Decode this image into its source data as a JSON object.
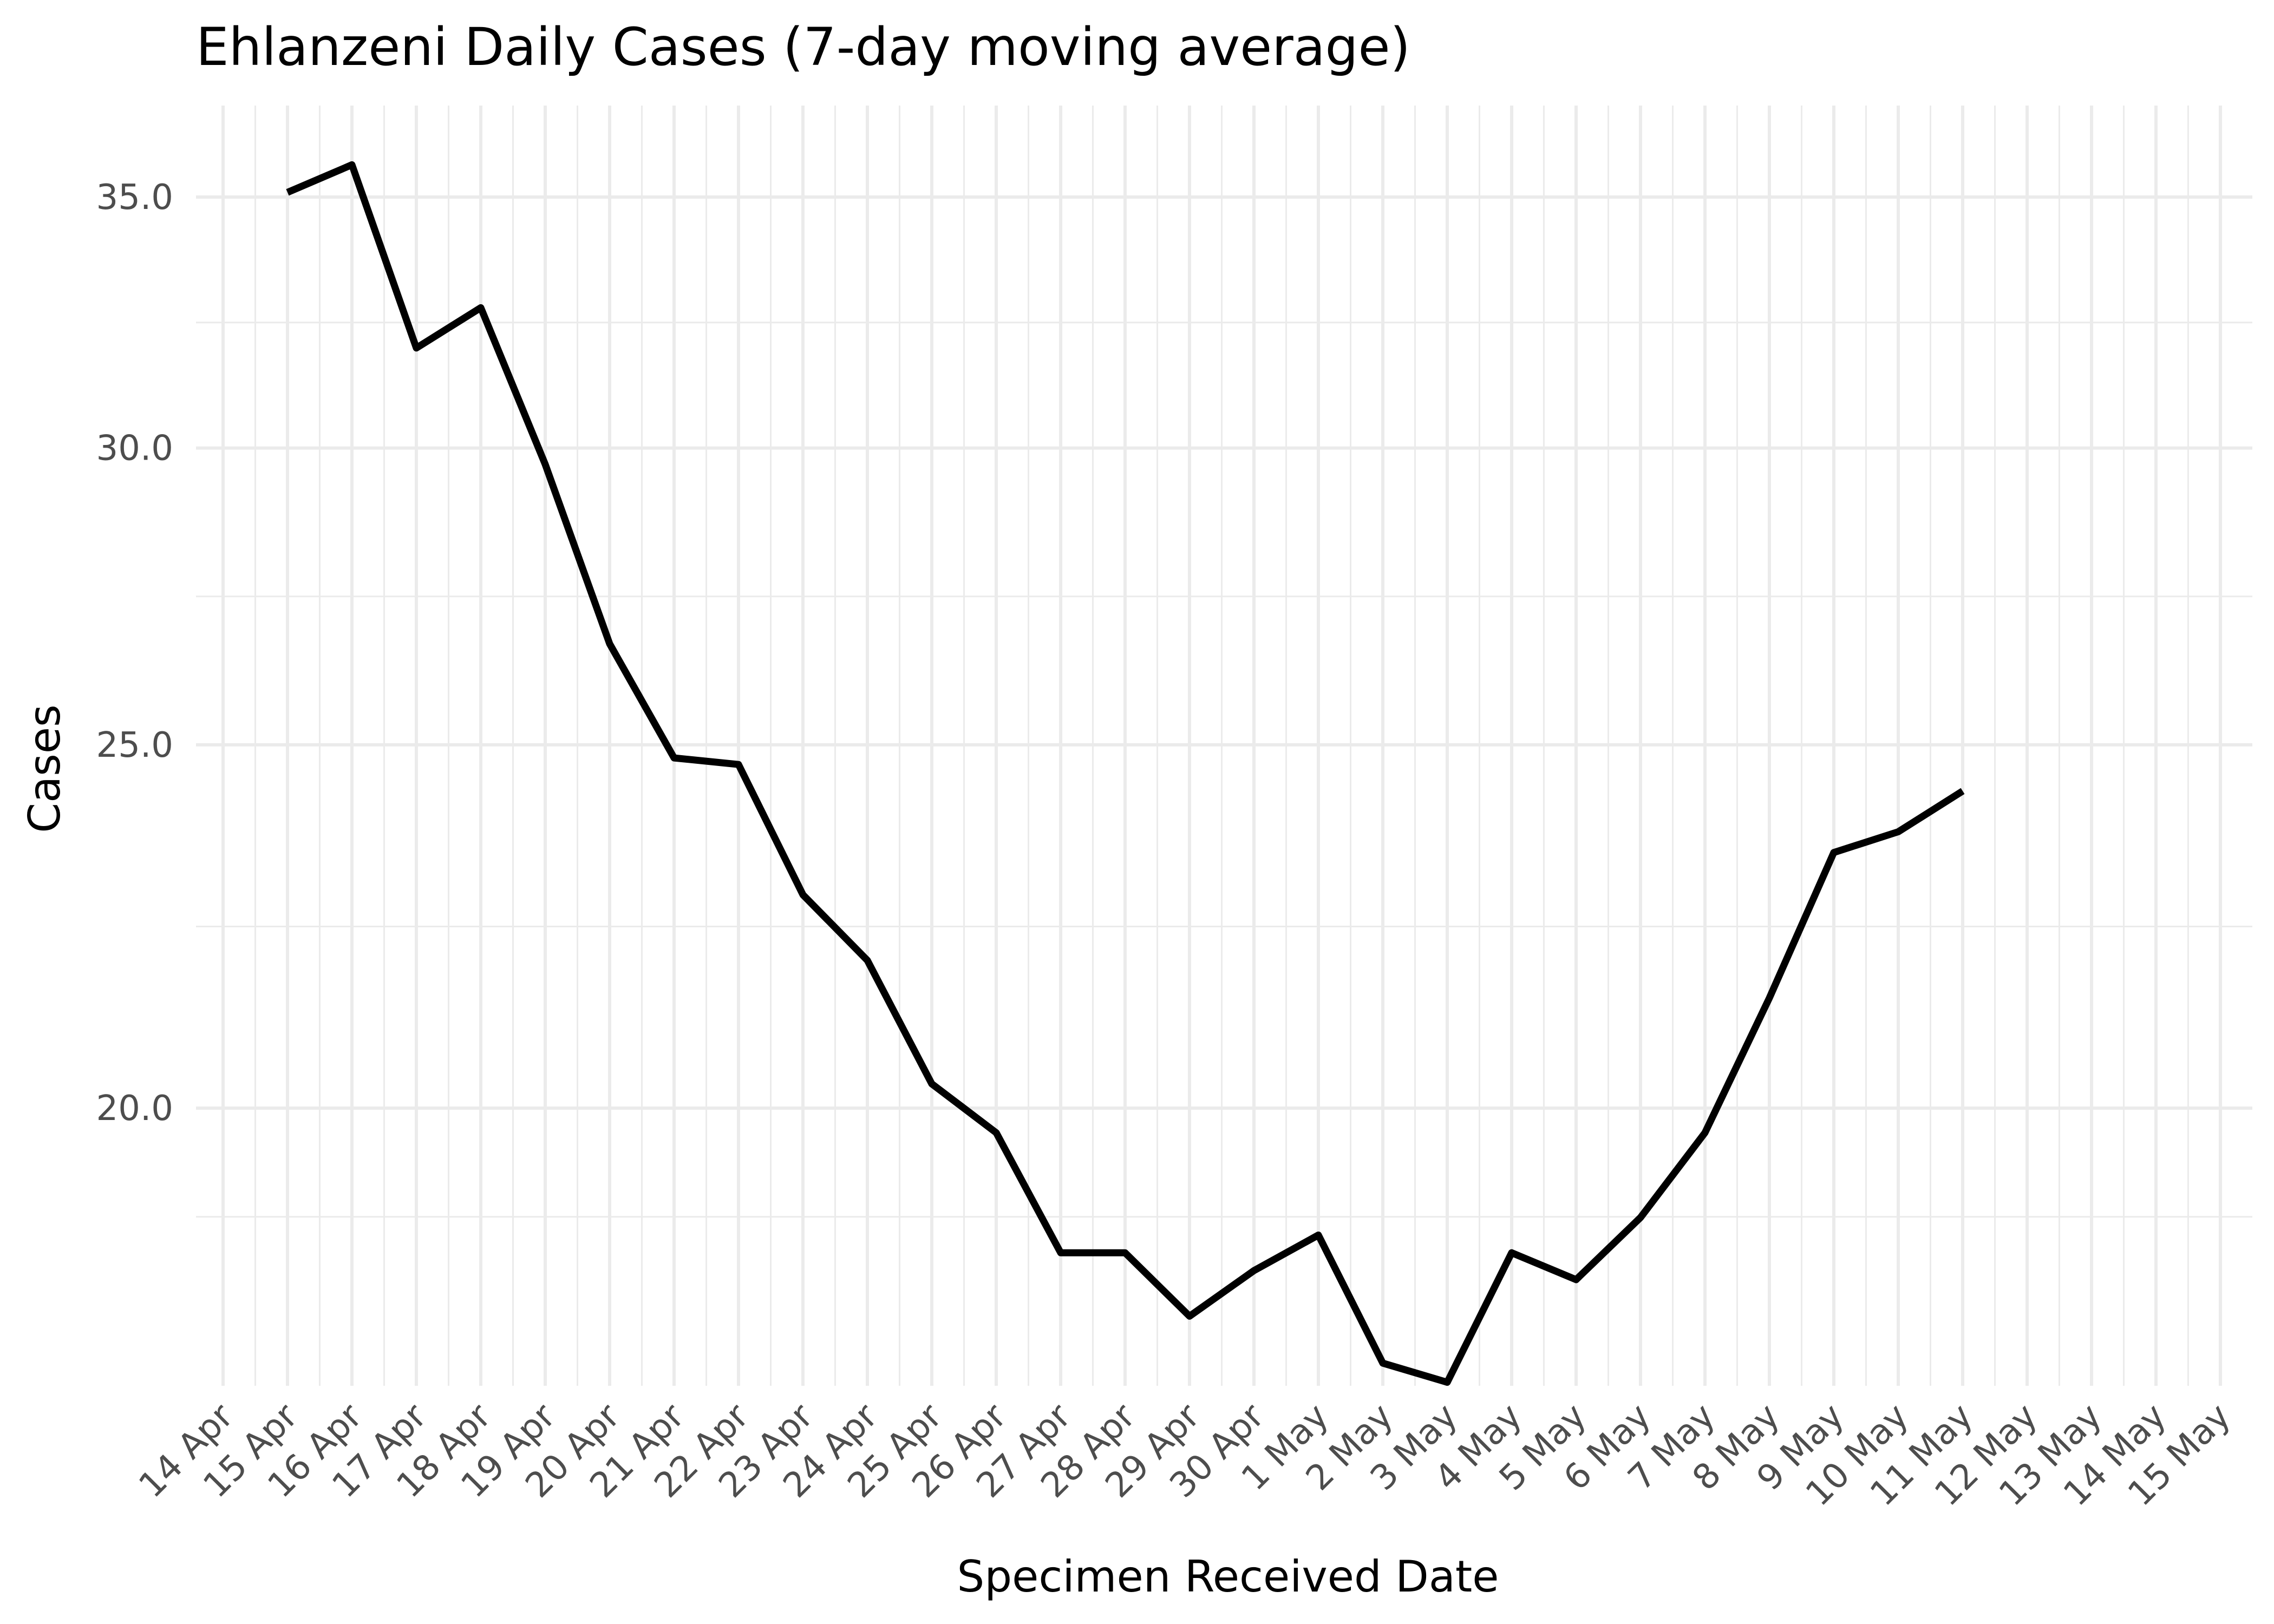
{
  "chart_data": {
    "type": "line",
    "title": "Ehlanzeni Daily Cases (7-day moving average)",
    "xlabel": "Specimen Received Date",
    "ylabel": "Cases",
    "x_ticks": [
      "14 Apr",
      "15 Apr",
      "16 Apr",
      "17 Apr",
      "18 Apr",
      "19 Apr",
      "20 Apr",
      "21 Apr",
      "22 Apr",
      "23 Apr",
      "24 Apr",
      "25 Apr",
      "26 Apr",
      "27 Apr",
      "28 Apr",
      "29 Apr",
      "30 Apr",
      "1 May",
      "2 May",
      "3 May",
      "4 May",
      "5 May",
      "6 May",
      "7 May",
      "8 May",
      "9 May",
      "10 May",
      "11 May",
      "12 May",
      "13 May",
      "14 May",
      "15 May"
    ],
    "y_ticks": [
      20.0,
      25.0,
      30.0,
      35.0
    ],
    "y_tick_labels": [
      "20.0",
      "25.0",
      "30.0",
      "35.0"
    ],
    "y_scale": "log10",
    "ylim": [
      17.0,
      36.2
    ],
    "grid": true,
    "series": [
      {
        "color": "#000000",
        "x": [
          "15 Apr",
          "16 Apr",
          "17 Apr",
          "18 Apr",
          "19 Apr",
          "20 Apr",
          "21 Apr",
          "22 Apr",
          "23 Apr",
          "24 Apr",
          "25 Apr",
          "26 Apr",
          "27 Apr",
          "28 Apr",
          "29 Apr",
          "30 Apr",
          "1 May",
          "2 May",
          "3 May",
          "4 May",
          "5 May",
          "6 May",
          "7 May",
          "8 May",
          "9 May",
          "10 May",
          "11 May"
        ],
        "values": [
          35.1,
          35.7,
          31.9,
          32.7,
          29.7,
          26.6,
          24.8,
          24.7,
          22.8,
          21.9,
          20.3,
          19.7,
          18.3,
          18.3,
          17.6,
          18.1,
          18.5,
          17.1,
          16.9,
          18.3,
          18.0,
          18.7,
          19.7,
          21.4,
          23.4,
          23.7,
          24.3
        ]
      }
    ]
  }
}
